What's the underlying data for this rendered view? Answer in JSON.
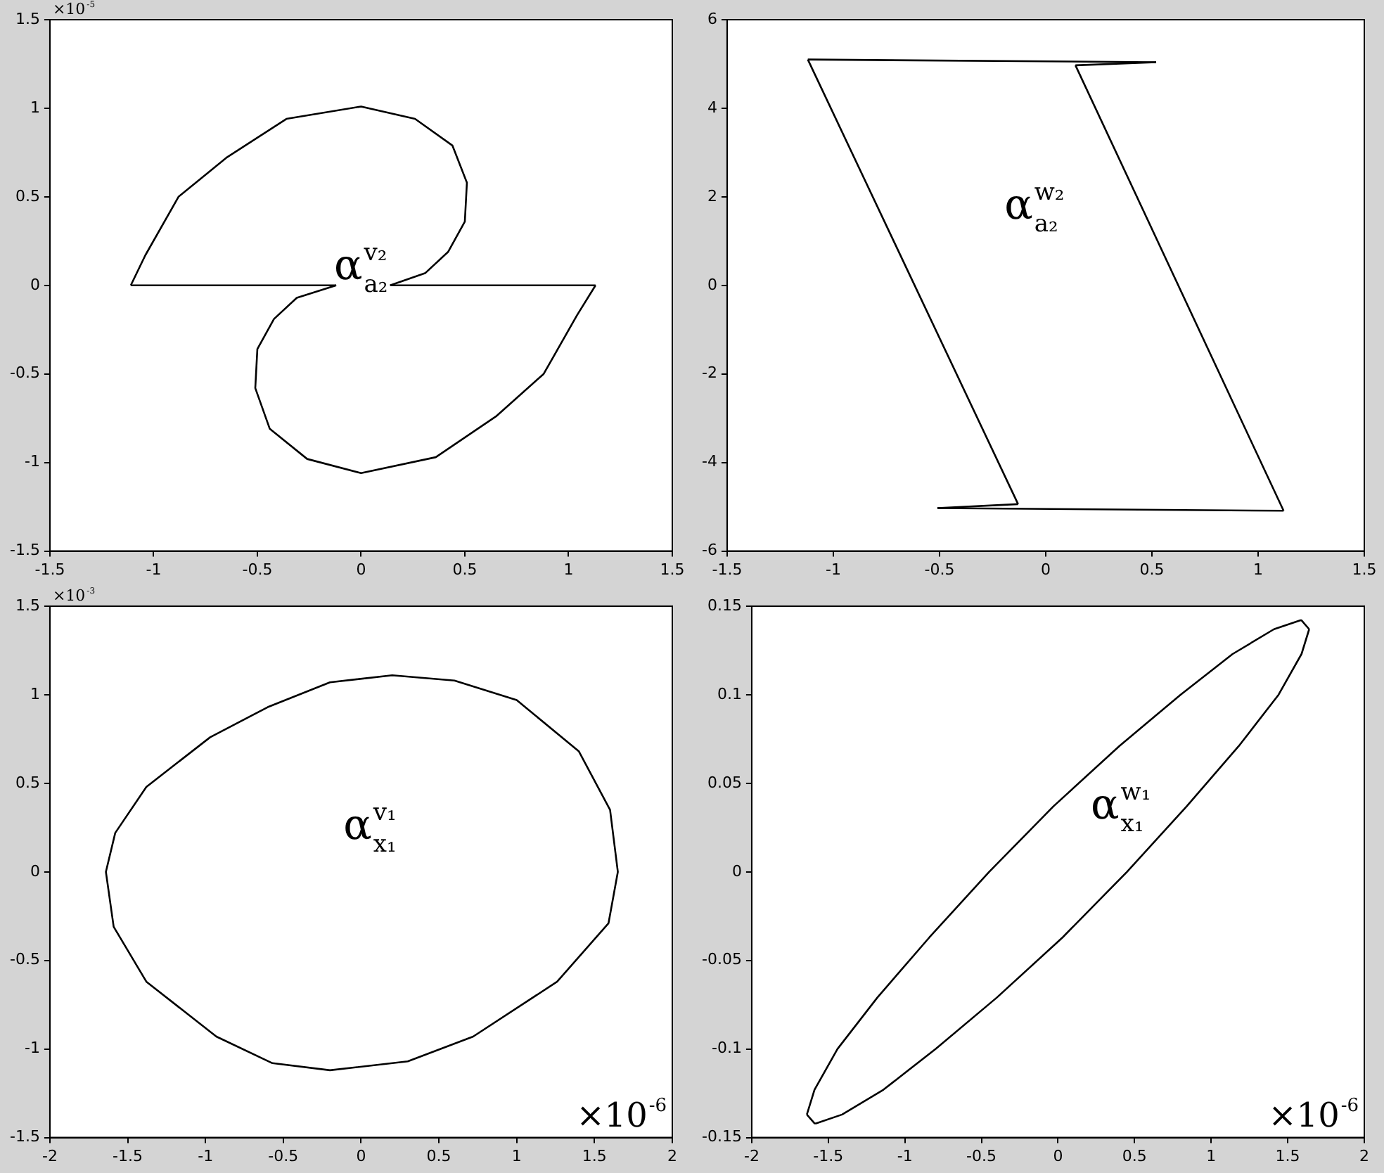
{
  "chart_data": [
    {
      "type": "line",
      "marker": "none",
      "grid": false,
      "ylabel": "×10$^{-5}$",
      "series": [
        {
          "name": "α$^{v₂}$$_{a₂}$",
          "color": "#000000",
          "x": [
            -1.11,
            -1.04,
            -0.88,
            -0.65,
            -0.36,
            0,
            0.26,
            0.44,
            0.51,
            0.5,
            0.42,
            0.31,
            0.14
          ],
          "values": [
            0,
            0.17,
            0.5,
            0.72,
            0.94,
            1.01,
            0.94,
            0.79,
            0.58,
            0.36,
            0.19,
            0.07,
            0
          ]
        },
        {
          "color": "#000000",
          "x": [
            0.14,
            1.13
          ],
          "values": [
            0,
            0
          ]
        },
        {
          "color": "#000000",
          "x": [
            1.13,
            1.04,
            0.88,
            0.65,
            0.36,
            0,
            -0.26,
            -0.44,
            -0.51,
            -0.5,
            -0.42,
            -0.31,
            -0.12
          ],
          "values": [
            0,
            -0.17,
            -0.5,
            -0.74,
            -0.97,
            -1.06,
            -0.98,
            -0.81,
            -0.58,
            -0.36,
            -0.19,
            -0.07,
            0
          ]
        },
        {
          "color": "#000000",
          "x": [
            -0.12,
            -1.11
          ],
          "values": [
            0,
            0
          ]
        }
      ],
      "xlim": [
        -1.5,
        1.5
      ],
      "xticks": [
        -1.5,
        -1,
        -0.5,
        0,
        0.5,
        1,
        1.5
      ],
      "ylim": [
        -1.5,
        1.5
      ],
      "yticks": [
        -1.5,
        -1,
        -0.5,
        0,
        0.5,
        1,
        1.5
      ]
    },
    {
      "type": "line",
      "marker": "none",
      "grid": false,
      "series": [
        {
          "name": "α$^{w₂}$$_{a₂}$",
          "color": "#000000",
          "x": [
            -1.12,
            0.52
          ],
          "values": [
            5.1,
            5.04
          ]
        },
        {
          "color": "#000000",
          "x": [
            0.52,
            0.14
          ],
          "values": [
            5.04,
            4.97
          ]
        },
        {
          "color": "#000000",
          "x": [
            0.14,
            1.12
          ],
          "values": [
            4.97,
            -5.09
          ]
        },
        {
          "color": "#000000",
          "x": [
            1.12,
            -0.51
          ],
          "values": [
            -5.09,
            -5.03
          ]
        },
        {
          "color": "#000000",
          "x": [
            -0.51,
            -0.13
          ],
          "values": [
            -5.03,
            -4.94
          ]
        },
        {
          "color": "#000000",
          "x": [
            -0.13,
            -1.12
          ],
          "values": [
            -4.94,
            5.1
          ]
        }
      ],
      "xlim": [
        -1.5,
        1.5
      ],
      "xticks": [
        -1.5,
        -1,
        -0.5,
        0,
        0.5,
        1,
        1.5
      ],
      "ylim": [
        -6,
        6
      ],
      "yticks": [
        -6,
        -4,
        -2,
        0,
        2,
        4,
        6
      ]
    },
    {
      "type": "line",
      "marker": "none",
      "grid": false,
      "ylabel": "×10$^{-3}$",
      "xlabel": "×10$^{-6}$",
      "series": [
        {
          "name": "α$^{v₁}$$_{x₁}$",
          "color": "#000000",
          "x": [
            1.65,
            1.6,
            1.4,
            1.0,
            0.6,
            0.2,
            -0.2,
            -0.6,
            -0.97,
            -1.38,
            -1.58,
            -1.64,
            -1.59,
            -1.38,
            -0.93,
            -0.57,
            -0.2,
            0.3,
            0.72,
            1.26,
            1.59,
            1.65,
            1.6
          ],
          "values": [
            0,
            0.35,
            0.68,
            0.97,
            1.08,
            1.11,
            1.07,
            0.93,
            0.76,
            0.48,
            0.22,
            0,
            -0.31,
            -0.62,
            -0.93,
            -1.08,
            -1.12,
            -1.07,
            -0.93,
            -0.62,
            -0.29,
            0,
            0.35
          ]
        }
      ],
      "xlim": [
        -2,
        2
      ],
      "xticks": [
        -2,
        -1.5,
        -1,
        -0.5,
        0,
        0.5,
        1,
        1.5,
        2
      ],
      "ylim": [
        -1.5,
        1.5
      ],
      "yticks": [
        -1.5,
        -1,
        -0.5,
        0,
        0.5,
        1,
        1.5
      ]
    },
    {
      "type": "line",
      "marker": "none",
      "grid": false,
      "xlabel": "×10$^{-6}$",
      "series": [
        {
          "name": "α$^{w₁}$$_{x₁}$",
          "color": "#000000",
          "x": [
            1.64,
            1.59,
            1.58,
            1.41,
            1.14,
            0.8,
            0.4,
            -0.03,
            -0.45,
            -0.84,
            -1.18,
            -1.44,
            -1.59,
            -1.64
          ],
          "values": [
            0.137,
            0.142,
            0.142,
            0.137,
            0.123,
            0.1,
            0.071,
            0.037,
            0,
            -0.037,
            -0.071,
            -0.1,
            -0.123,
            -0.137
          ]
        },
        {
          "color": "#000000",
          "x": [
            -1.64,
            -1.59,
            -1.58,
            -1.41,
            -1.14,
            -0.8,
            -0.4,
            0.03,
            0.45,
            0.84,
            1.18,
            1.44,
            1.59,
            1.64
          ],
          "values": [
            -0.137,
            -0.142,
            -0.142,
            -0.137,
            -0.123,
            -0.1,
            -0.071,
            -0.037,
            0,
            0.037,
            0.071,
            0.1,
            0.123,
            0.137
          ]
        }
      ],
      "xlim": [
        -2,
        2
      ],
      "xticks": [
        -2,
        -1.5,
        -1,
        -0.5,
        0,
        0.5,
        1,
        1.5,
        2
      ],
      "ylim": [
        -0.15,
        0.15
      ],
      "yticks": [
        -0.15,
        -0.1,
        -0.05,
        0,
        0.05,
        0.1,
        0.15
      ]
    }
  ]
}
